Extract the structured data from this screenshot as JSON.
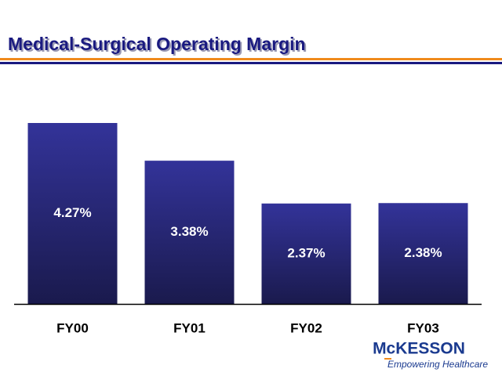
{
  "chart_data": {
    "type": "bar",
    "title": "Medical-Surgical Operating Margin",
    "categories": [
      "FY00",
      "FY01",
      "FY02",
      "FY03"
    ],
    "values": [
      4.27,
      3.38,
      2.37,
      2.38
    ],
    "value_labels": [
      "4.27%",
      "3.38%",
      "2.37%",
      "2.38%"
    ],
    "color": "#2e2e8f"
  },
  "logo": {
    "name": "McKESSON",
    "tagline": "Empowering Healthcare"
  }
}
